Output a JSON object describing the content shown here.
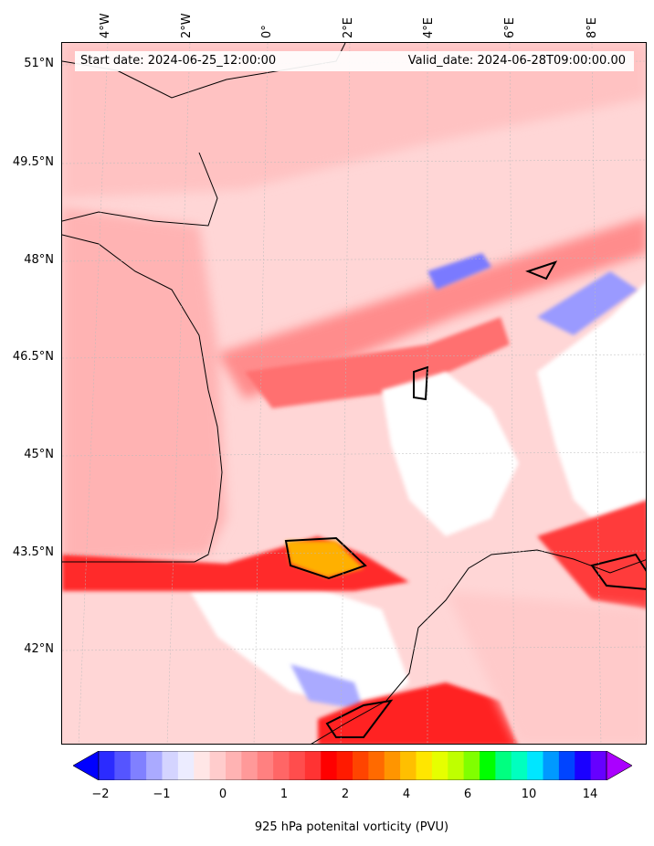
{
  "header": {
    "start_date": "Start date: 2024-06-25_12:00:00",
    "valid_date": "Valid_date: 2024-06-28T09:00:00.00"
  },
  "axes": {
    "longitude_labels": [
      "4°W",
      "2°W",
      "0°",
      "2°E",
      "4°E",
      "6°E",
      "8°E"
    ],
    "latitude_labels": [
      "51°N",
      "49.5°N",
      "48°N",
      "46.5°N",
      "45°N",
      "43.5°N",
      "42°N"
    ]
  },
  "colorbar": {
    "title": "925 hPa potenital vorticity (PVU)",
    "tick_labels": [
      "−2",
      "−1",
      "0",
      "1",
      "2",
      "4",
      "6",
      "10",
      "14"
    ],
    "colors": [
      "#0000ff",
      "#2b2bff",
      "#5555ff",
      "#8080ff",
      "#aaaaff",
      "#d4d4ff",
      "#ececff",
      "#ffe6e6",
      "#ffcccc",
      "#ffb3b3",
      "#ff9999",
      "#ff8080",
      "#ff6666",
      "#ff4d4d",
      "#ff3333",
      "#ff0000",
      "#ff1a00",
      "#ff4400",
      "#ff6a00",
      "#ff9500",
      "#ffbf00",
      "#ffe600",
      "#e6ff00",
      "#bfff00",
      "#80ff00",
      "#00ff00",
      "#00ff80",
      "#00ffbf",
      "#00e6ff",
      "#0099ff",
      "#0044ff",
      "#1a00ff",
      "#6600ff",
      "#aa00ff"
    ],
    "extend": "both"
  },
  "map": {
    "field": "925 hPa potential vorticity",
    "palette_low": "#0000ff",
    "palette_zero": "#ffffff",
    "palette_high": "#ff0000",
    "coastline_color": "#000000"
  }
}
